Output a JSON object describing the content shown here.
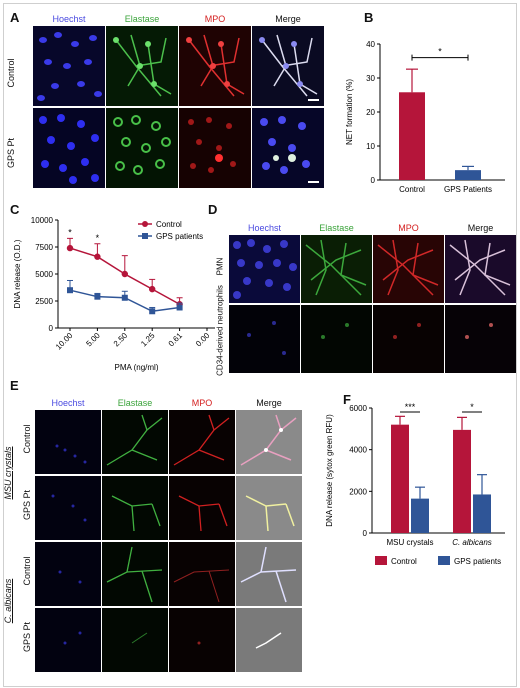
{
  "colors": {
    "hoechst": "#4a4ae0",
    "elastase": "#3aa33a",
    "mpo": "#d42020",
    "control": "#b5153a",
    "gps": "#2f5597",
    "merge": "#111111"
  },
  "panel_letters": {
    "a": "A",
    "b": "B",
    "c": "C",
    "d": "D",
    "e": "E",
    "f": "F"
  },
  "panel_a": {
    "columns": [
      "Hoechst",
      "Elastase",
      "MPO",
      "Merge"
    ],
    "rows": [
      "Control",
      "GPS Pt"
    ]
  },
  "panel_d": {
    "columns": [
      "Hoechst",
      "Elastase",
      "MPO",
      "Merge"
    ],
    "rows": [
      "PMN",
      "CD34-derived neutrophils"
    ]
  },
  "panel_e": {
    "columns": [
      "Hoechst",
      "Elastase",
      "MPO",
      "Merge"
    ],
    "groups": [
      "MSU crystals",
      "C. albicans"
    ],
    "rows": [
      "Control",
      "GPS Pt",
      "Control",
      "GPS Pt"
    ]
  },
  "chart_data": [
    {
      "panel": "B",
      "type": "bar",
      "categories": [
        "Control",
        "GPS Patients"
      ],
      "values": [
        25.8,
        2.9
      ],
      "errors": [
        6.8,
        1.1
      ],
      "ylabel": "NET formation (%)",
      "ylim": [
        0,
        40
      ],
      "yticks": [
        "0",
        "10",
        "20",
        "30",
        "40"
      ],
      "significance": "*"
    },
    {
      "panel": "C",
      "type": "line",
      "x": [
        "10.00",
        "5.00",
        "2.50",
        "1.25",
        "0.61",
        "0.00"
      ],
      "series": [
        {
          "name": "Control",
          "values": [
            7400,
            6600,
            5000,
            3600,
            2200,
            null
          ],
          "errors": [
            900,
            1200,
            1700,
            900,
            600,
            null
          ]
        },
        {
          "name": "GPS patients",
          "values": [
            3500,
            2900,
            2800,
            1550,
            1900,
            null
          ],
          "errors": [
            900,
            300,
            600,
            350,
            400,
            null
          ]
        }
      ],
      "xlabel": "PMA (ng/ml)",
      "ylabel": "DNA release (O.D.)",
      "ylim": [
        0,
        10000
      ],
      "yticks": [
        "0",
        "2500",
        "5000",
        "7500",
        "10000"
      ],
      "significance": [
        "*",
        "*"
      ]
    },
    {
      "panel": "F",
      "type": "bar",
      "categories": [
        "MSU crystals",
        "C. albicans"
      ],
      "series": [
        {
          "name": "Control",
          "values": [
            5200,
            4950
          ],
          "errors": [
            400,
            600
          ]
        },
        {
          "name": "GPS patients",
          "values": [
            1650,
            1850
          ],
          "errors": [
            550,
            950
          ]
        }
      ],
      "ylabel": "DNA release (sytox green RFU)",
      "ylim": [
        0,
        6000
      ],
      "yticks": [
        "0",
        "2000",
        "4000",
        "6000"
      ],
      "significance": [
        "***",
        "*"
      ]
    }
  ]
}
